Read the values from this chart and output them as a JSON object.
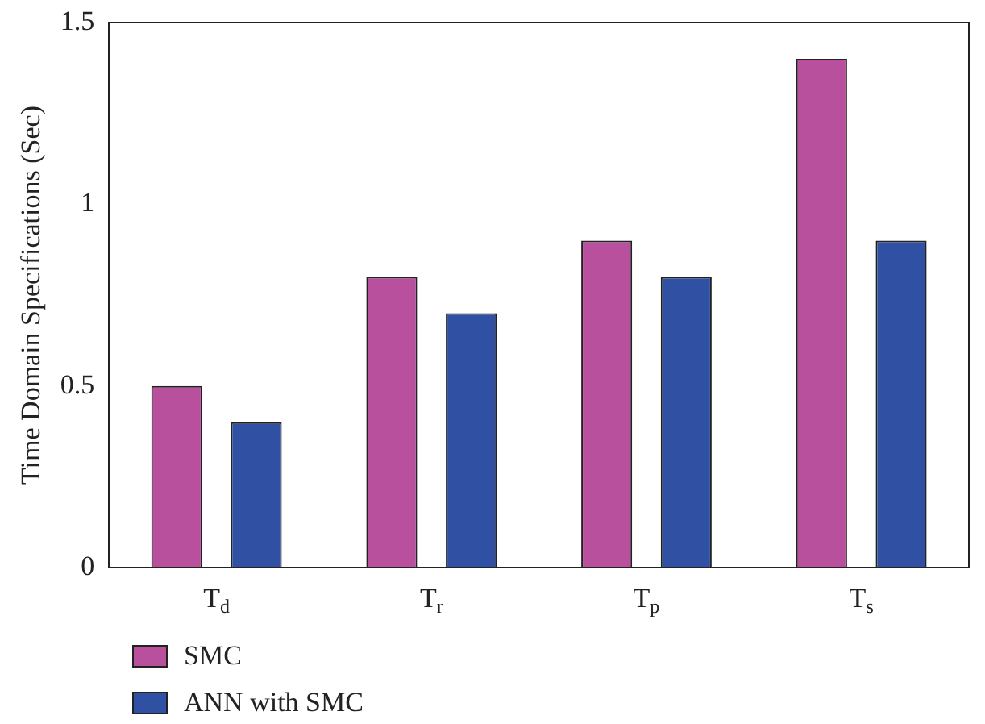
{
  "chart_data": {
    "type": "bar",
    "ylabel": "Time Domain Specifications (Sec)",
    "categories": [
      "T$_{d}$",
      "T$_{r}$",
      "T$_{p}$",
      "T$_{s}$"
    ],
    "series": [
      {
        "name": "SMC",
        "color": "#b9509e",
        "values": [
          0.5,
          0.8,
          0.9,
          1.4
        ]
      },
      {
        "name": "ANN with SMC",
        "color": "#3050a3",
        "values": [
          0.4,
          0.7,
          0.8,
          0.9
        ]
      }
    ],
    "ylim": [
      0,
      1.5
    ],
    "yticks": [
      0,
      0.5,
      1,
      1.5
    ],
    "grid": false,
    "legend": "bottom left"
  }
}
